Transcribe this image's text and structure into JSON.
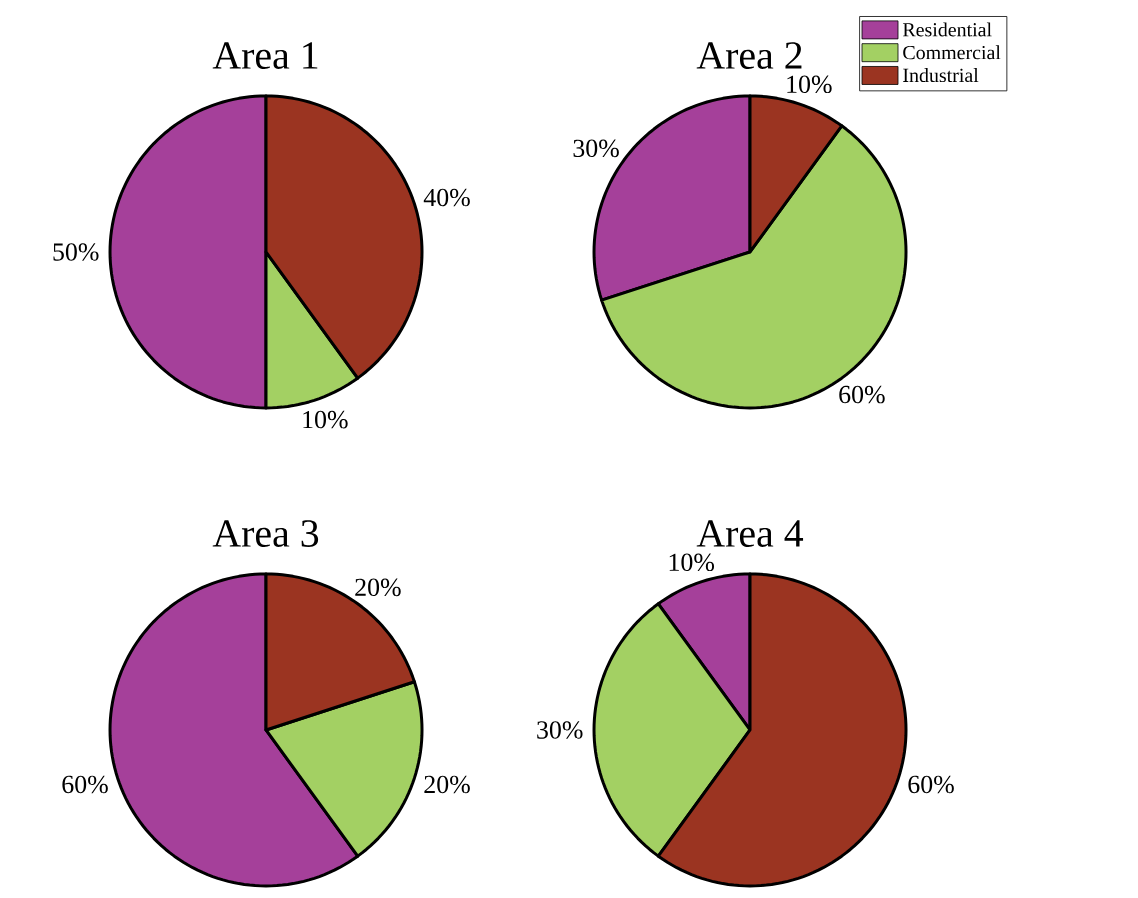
{
  "chart_data": [
    {
      "type": "pie",
      "title": "Area 1",
      "values": [
        50,
        10,
        40
      ],
      "value_labels": [
        "50%",
        "10%",
        "40%"
      ],
      "colors": [
        "#a5409a",
        "#a3d063",
        "#9b3421"
      ]
    },
    {
      "type": "pie",
      "title": "Area 2",
      "categories": [
        "Residential",
        "Commercial",
        "Industrial"
      ],
      "values": [
        30,
        60,
        10
      ],
      "value_labels": [
        "30%",
        "60%",
        "10%"
      ],
      "colors": [
        "#a5409a",
        "#a3d063",
        "#9b3421"
      ],
      "legend": "top right"
    },
    {
      "type": "pie",
      "title": "Area 3",
      "values": [
        60,
        20,
        20
      ],
      "value_labels": [
        "60%",
        "20%",
        "20%"
      ],
      "colors": [
        "#a5409a",
        "#a3d063",
        "#9b3421"
      ]
    },
    {
      "type": "pie",
      "title": "Area 4",
      "values": [
        10,
        30,
        60
      ],
      "value_labels": [
        "10%",
        "30%",
        "60%"
      ],
      "colors": [
        "#a5409a",
        "#a3d063",
        "#9b3421"
      ]
    }
  ]
}
